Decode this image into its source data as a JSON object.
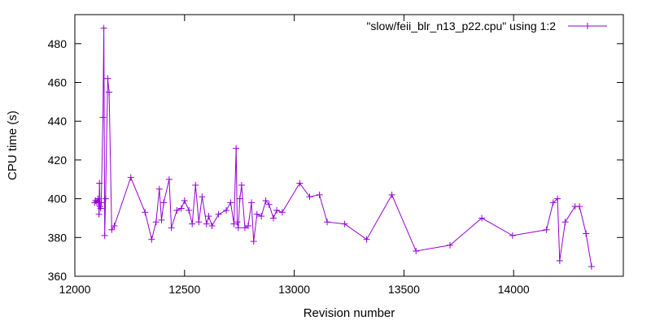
{
  "chart_data": {
    "type": "line",
    "title": "",
    "xlabel": "Revision number",
    "ylabel": "CPU time (s)",
    "xlim": [
      12000,
      14500
    ],
    "ylim": [
      360,
      495
    ],
    "xticks": [
      12000,
      12500,
      13000,
      13500,
      14000
    ],
    "yticks": [
      360,
      380,
      400,
      420,
      440,
      460,
      480
    ],
    "grid": false,
    "legend": "top-right",
    "color": "#9400d3",
    "marker": "plus",
    "series": [
      {
        "name": "\"slow/feii_blr_n13_p22.cpu\" using 1:2",
        "points": [
          [
            12090,
            398
          ],
          [
            12095,
            399
          ],
          [
            12100,
            398
          ],
          [
            12105,
            400
          ],
          [
            12108,
            398
          ],
          [
            12110,
            392
          ],
          [
            12112,
            408
          ],
          [
            12115,
            396
          ],
          [
            12118,
            395
          ],
          [
            12120,
            398
          ],
          [
            12128,
            442
          ],
          [
            12132,
            488
          ],
          [
            12136,
            381
          ],
          [
            12140,
            400
          ],
          [
            12150,
            462
          ],
          [
            12156,
            455
          ],
          [
            12168,
            384
          ],
          [
            12180,
            386
          ],
          [
            12255,
            411
          ],
          [
            12320,
            393
          ],
          [
            12350,
            379
          ],
          [
            12370,
            388
          ],
          [
            12385,
            405
          ],
          [
            12395,
            389
          ],
          [
            12405,
            398
          ],
          [
            12430,
            410
          ],
          [
            12440,
            385
          ],
          [
            12465,
            394
          ],
          [
            12485,
            395
          ],
          [
            12500,
            399
          ],
          [
            12520,
            394
          ],
          [
            12535,
            387
          ],
          [
            12550,
            407
          ],
          [
            12565,
            388
          ],
          [
            12580,
            401
          ],
          [
            12600,
            387
          ],
          [
            12610,
            391
          ],
          [
            12625,
            386
          ],
          [
            12655,
            392
          ],
          [
            12690,
            394
          ],
          [
            12710,
            398
          ],
          [
            12725,
            387
          ],
          [
            12735,
            426
          ],
          [
            12740,
            388
          ],
          [
            12745,
            385
          ],
          [
            12752,
            400
          ],
          [
            12760,
            407
          ],
          [
            12775,
            385
          ],
          [
            12790,
            386
          ],
          [
            12805,
            398
          ],
          [
            12815,
            378
          ],
          [
            12830,
            392
          ],
          [
            12850,
            391
          ],
          [
            12870,
            399
          ],
          [
            12885,
            397
          ],
          [
            12905,
            390
          ],
          [
            12920,
            394
          ],
          [
            12945,
            393
          ],
          [
            13025,
            408
          ],
          [
            13070,
            401
          ],
          [
            13115,
            402
          ],
          [
            13150,
            388
          ],
          [
            13230,
            387
          ],
          [
            13330,
            379
          ],
          [
            13445,
            402
          ],
          [
            13555,
            373
          ],
          [
            13710,
            376
          ],
          [
            13855,
            390
          ],
          [
            13995,
            381
          ],
          [
            14150,
            384
          ],
          [
            14180,
            398
          ],
          [
            14200,
            400
          ],
          [
            14210,
            368
          ],
          [
            14235,
            388
          ],
          [
            14280,
            396
          ],
          [
            14300,
            396
          ],
          [
            14330,
            382
          ],
          [
            14355,
            365
          ]
        ]
      }
    ]
  }
}
